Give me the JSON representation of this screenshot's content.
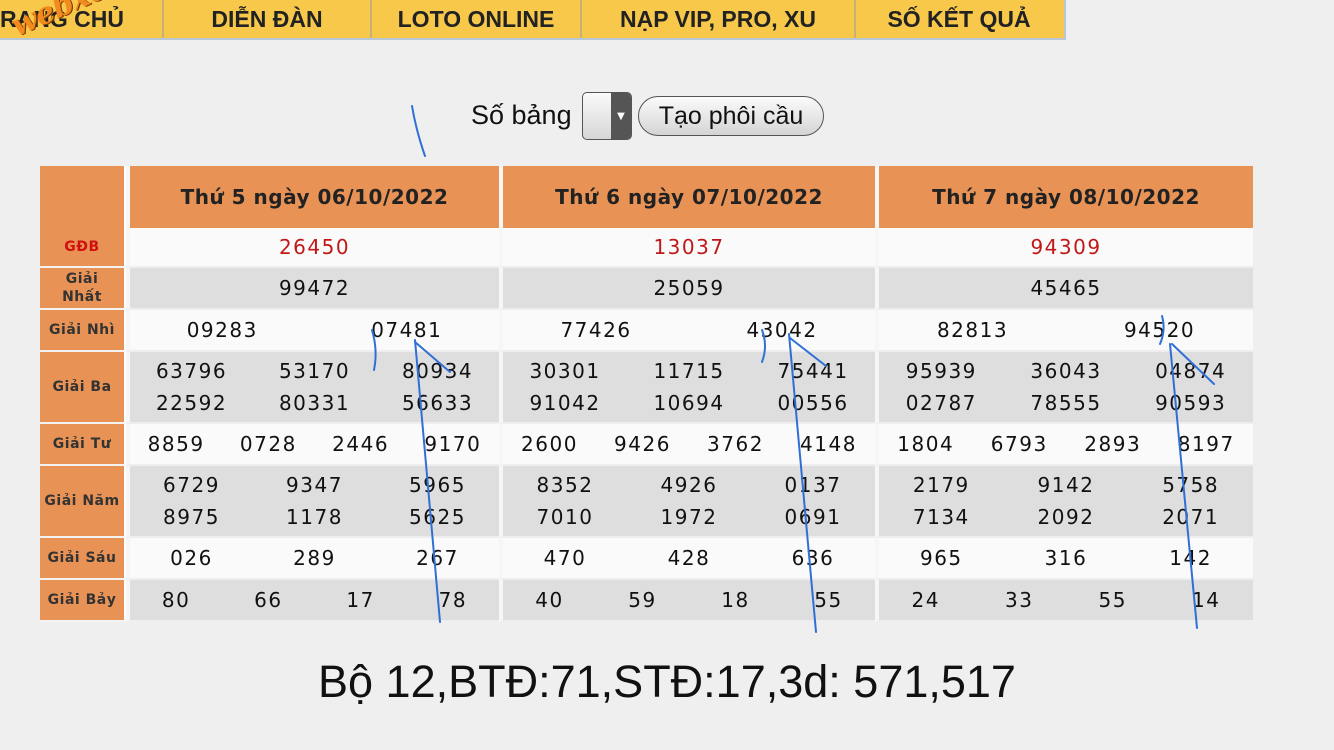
{
  "nav": {
    "items": [
      "RANG CHỦ",
      "DIỄN ĐÀN",
      "LOTO ONLINE",
      "NẠP VIP, PRO, XU",
      "SỐ KẾT QUẢ"
    ],
    "logo": "webxoso.net"
  },
  "controls": {
    "so_bang_label": "Số bảng",
    "button_label": "Tạo phôi cầu"
  },
  "table": {
    "columns": [
      "Thứ 5 ngày 06/10/2022",
      "Thứ 6 ngày 07/10/2022",
      "Thứ 7 ngày 08/10/2022"
    ],
    "labels": {
      "gdb": "GĐB",
      "nhat_1": "Giải",
      "nhat_2": "Nhất",
      "nhi": "Giải Nhì",
      "ba": "Giải Ba",
      "tu": "Giải Tư",
      "nam": "Giải Năm",
      "sau": "Giải Sáu",
      "bay": "Giải Bảy"
    },
    "results": [
      {
        "gdb": "26450",
        "nhat": "99472",
        "nhi": [
          "09283",
          "07481"
        ],
        "ba": [
          "63796",
          "53170",
          "80934",
          "22592",
          "80331",
          "56633"
        ],
        "tu": [
          "8859",
          "0728",
          "2446",
          "9170"
        ],
        "nam": [
          "6729",
          "9347",
          "5965",
          "8975",
          "1178",
          "5625"
        ],
        "sau": [
          "026",
          "289",
          "267"
        ],
        "bay": [
          "80",
          "66",
          "17",
          "78"
        ]
      },
      {
        "gdb": "13037",
        "nhat": "25059",
        "nhi": [
          "77426",
          "43042"
        ],
        "ba": [
          "30301",
          "11715",
          "75441",
          "91042",
          "10694",
          "00556"
        ],
        "tu": [
          "2600",
          "9426",
          "3762",
          "4148"
        ],
        "nam": [
          "8352",
          "4926",
          "0137",
          "7010",
          "1972",
          "0691"
        ],
        "sau": [
          "470",
          "428",
          "636"
        ],
        "bay": [
          "40",
          "59",
          "18",
          "55"
        ]
      },
      {
        "gdb": "94309",
        "nhat": "45465",
        "nhi": [
          "82813",
          "94520"
        ],
        "ba": [
          "95939",
          "36043",
          "04874",
          "02787",
          "78555",
          "90593"
        ],
        "tu": [
          "1804",
          "6793",
          "2893",
          "8197"
        ],
        "nam": [
          "2179",
          "9142",
          "5758",
          "7134",
          "2092",
          "2071"
        ],
        "sau": [
          "965",
          "316",
          "142"
        ],
        "bay": [
          "24",
          "33",
          "55",
          "14"
        ]
      }
    ]
  },
  "summary": "Bộ 12,BTĐ:71,STĐ:17,3d: 571,517",
  "colors": {
    "nav_bg": "#f7c84a",
    "header_bg": "#e89355",
    "gdb_red": "#c01818",
    "ink_blue": "#2f6fd6"
  }
}
